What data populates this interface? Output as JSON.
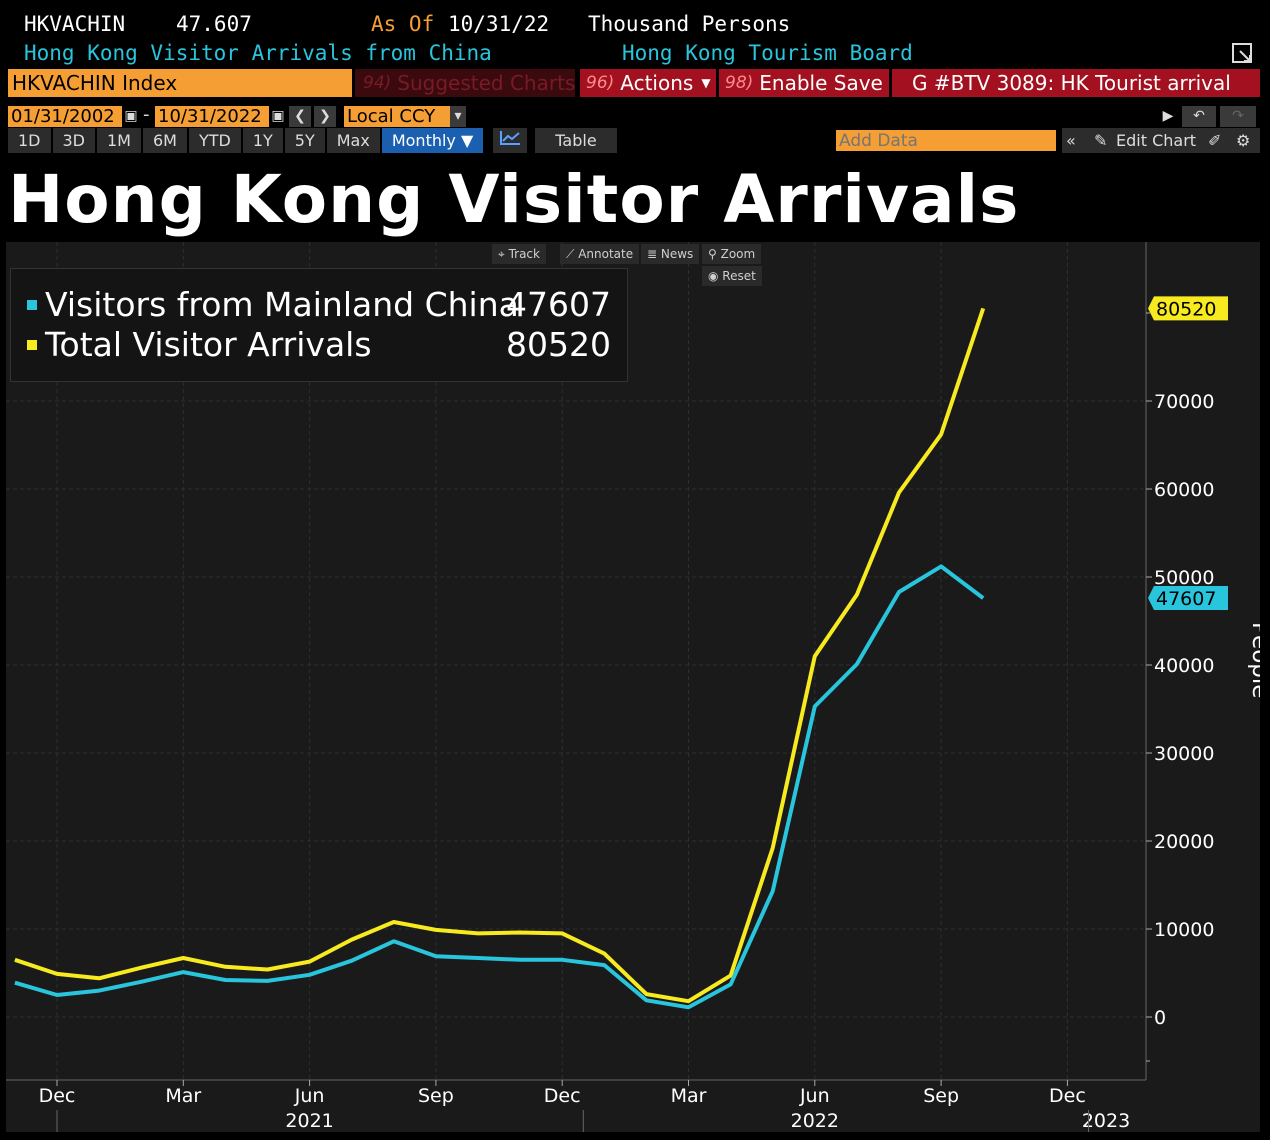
{
  "header": {
    "ticker": "HKVACHIN",
    "value": "47.607",
    "as_of_label": "As Of",
    "as_of_date": "10/31/22",
    "units": "Thousand Persons",
    "description": "Hong Kong Visitor Arrivals from China",
    "source": "Hong Kong Tourism Board"
  },
  "function_bar": {
    "security": "HKVACHIN Index",
    "suggested_num": "94)",
    "suggested": "Suggested Charts",
    "actions_num": "96)",
    "actions": "Actions",
    "save_num": "98)",
    "save": "Enable Save",
    "story": "G #BTV 3089: HK Tourist arrival"
  },
  "date_range": {
    "start": "01/31/2002",
    "separator": "-",
    "end": "10/31/2022",
    "currency": "Local CCY"
  },
  "range_buttons": [
    "1D",
    "3D",
    "1M",
    "6M",
    "YTD",
    "1Y",
    "5Y",
    "Max"
  ],
  "frequency": "Monthly ▼",
  "table_label": "Table",
  "add_data_placeholder": "Add Data",
  "edit_chart": "Edit Chart",
  "chart_title": "Hong Kong Visitor Arrivals",
  "tools": {
    "track": "Track",
    "annotate": "Annotate",
    "news": "News",
    "zoom": "Zoom",
    "reset": "Reset"
  },
  "colors": {
    "china": "#29c5dc",
    "total": "#f7ea1e",
    "orange": "#f59e33",
    "red_button": "#a3101f",
    "active_blue": "#1b5fb0"
  },
  "chart_data": {
    "type": "line",
    "title": "Hong Kong Visitor Arrivals",
    "xlabel": "",
    "ylabel": "People",
    "ylim": [
      -7000,
      87000
    ],
    "yticks": [
      0,
      10000,
      20000,
      30000,
      40000,
      50000,
      60000,
      70000
    ],
    "ytick_labels": [
      "0",
      "10000",
      "20000",
      "30000",
      "40000",
      "50000",
      "60000",
      "70000"
    ],
    "x_tick_labels": [
      "Dec",
      "Mar",
      "Jun",
      "Sep",
      "Dec",
      "Mar",
      "Jun",
      "Sep",
      "Dec"
    ],
    "x_tick_dates": [
      "2020-12",
      "2021-03",
      "2021-06",
      "2021-09",
      "2021-12",
      "2022-03",
      "2022-06",
      "2022-09",
      "2022-12"
    ],
    "year_labels": [
      "2021",
      "2022",
      "2023"
    ],
    "legend": "top-left",
    "grid": true,
    "x": [
      "2020-11",
      "2020-12",
      "2021-01",
      "2021-02",
      "2021-03",
      "2021-04",
      "2021-05",
      "2021-06",
      "2021-07",
      "2021-08",
      "2021-09",
      "2021-10",
      "2021-11",
      "2021-12",
      "2022-01",
      "2022-02",
      "2022-03",
      "2022-04",
      "2022-05",
      "2022-06",
      "2022-07",
      "2022-08",
      "2022-09",
      "2022-10"
    ],
    "series": [
      {
        "name": "Visitors from Mainland China",
        "last": "47607",
        "color": "#29c5dc",
        "values": [
          3900,
          2500,
          3000,
          4000,
          5100,
          4200,
          4100,
          4800,
          6400,
          8600,
          6900,
          6700,
          6500,
          6500,
          5900,
          1900,
          1100,
          3700,
          14300,
          35300,
          40100,
          48300,
          51200,
          47607
        ]
      },
      {
        "name": "Total Visitor Arrivals",
        "last": "80520",
        "color": "#f7ea1e",
        "values": [
          6500,
          4900,
          4400,
          5600,
          6700,
          5700,
          5400,
          6300,
          8800,
          10800,
          9900,
          9500,
          9600,
          9500,
          7200,
          2600,
          1800,
          4700,
          19200,
          41000,
          48000,
          59600,
          66200,
          80520
        ]
      }
    ]
  }
}
